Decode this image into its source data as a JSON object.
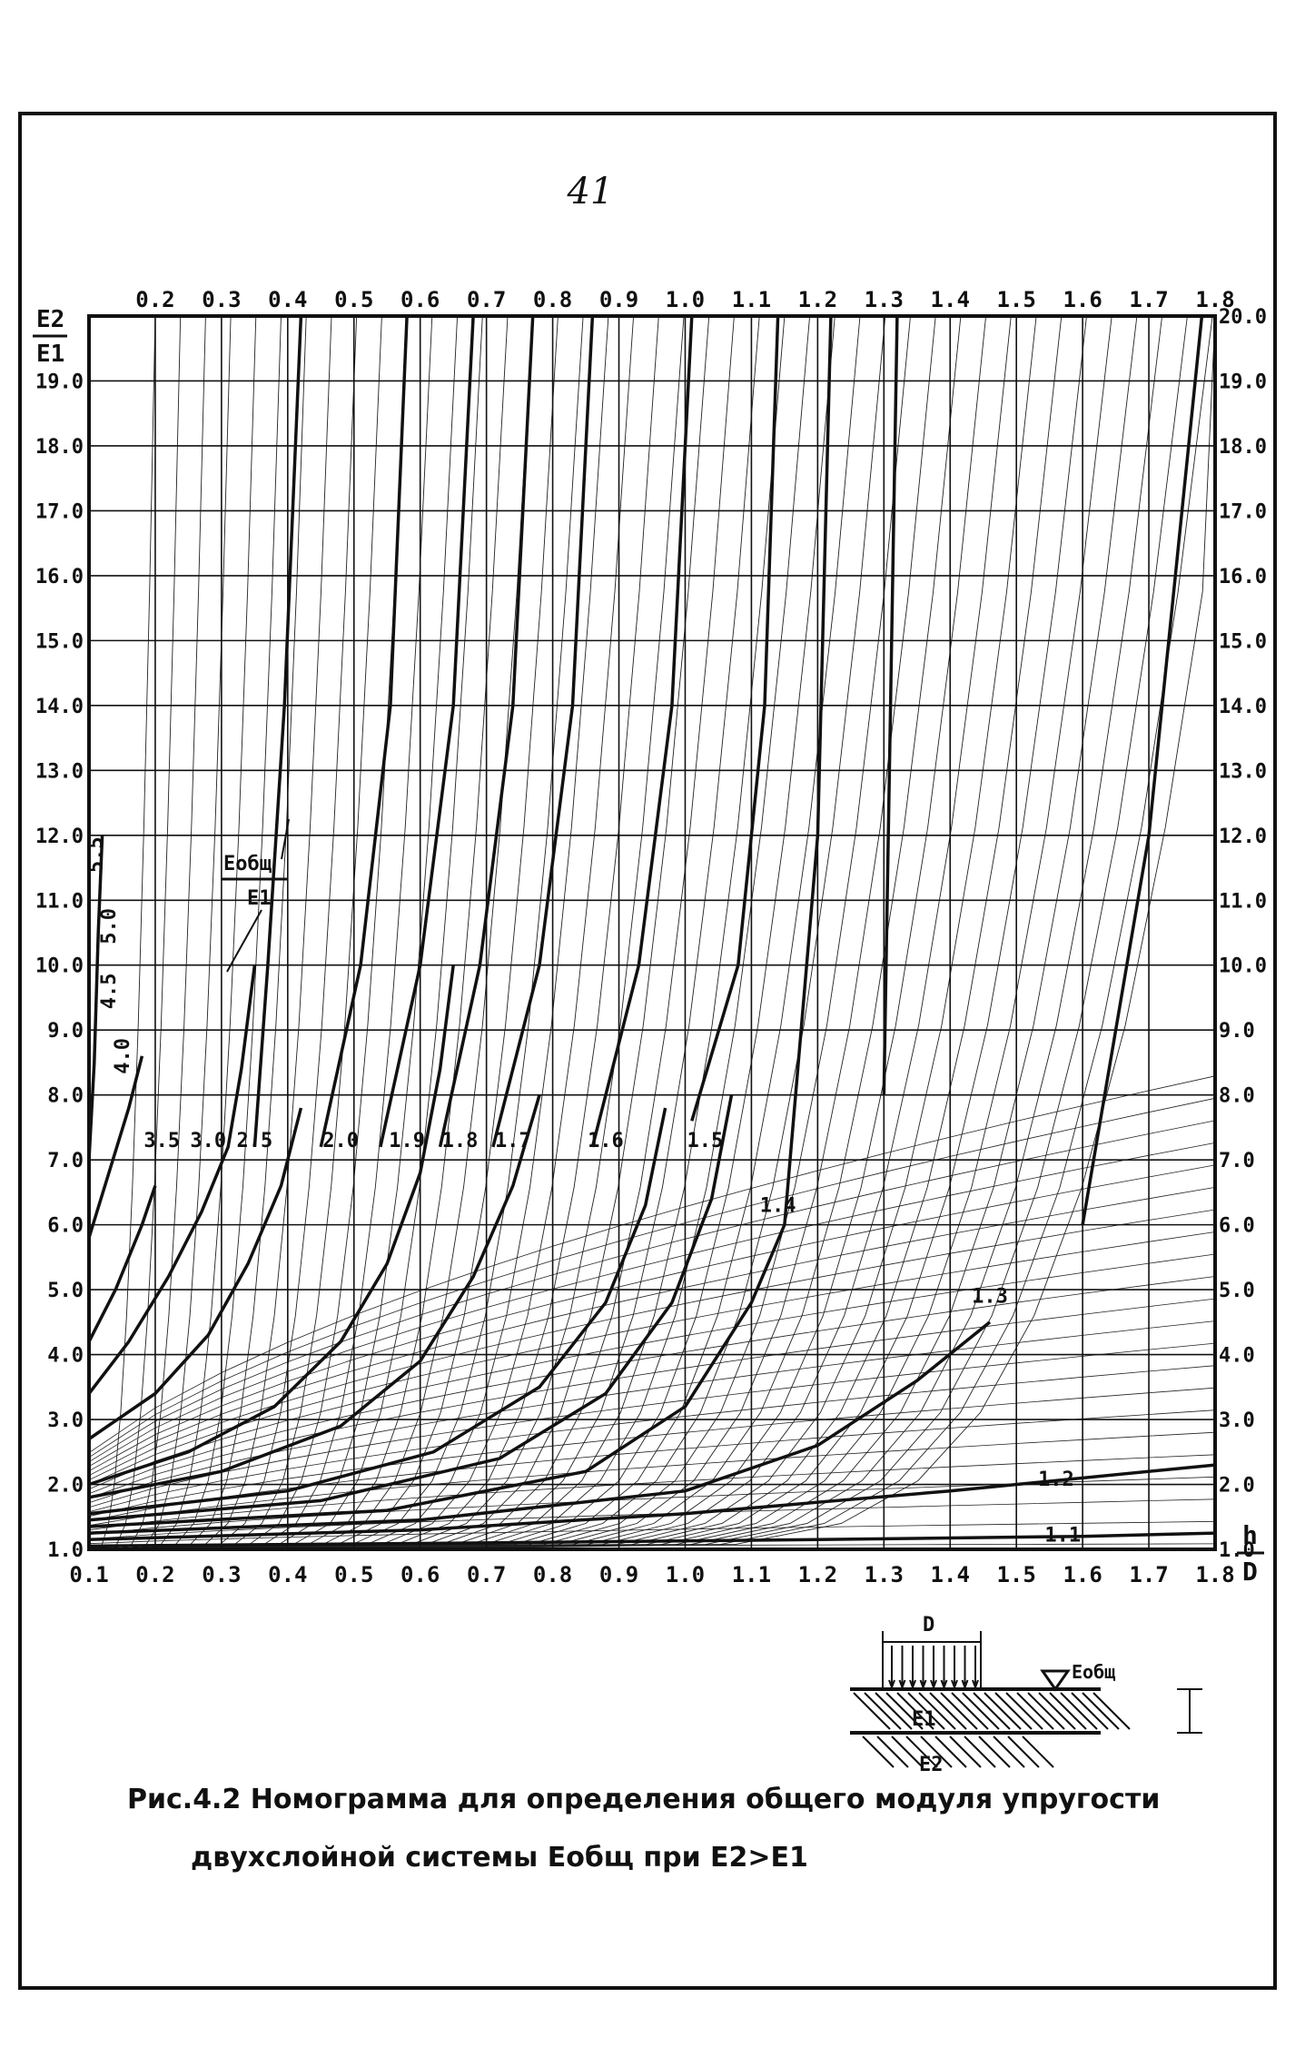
{
  "page_number": "41",
  "chart_data": {
    "type": "line",
    "title": "",
    "x_top_labels": [
      "0.2",
      "0.3",
      "0.4",
      "0.5",
      "0.6",
      "0.7",
      "0.8",
      "0.9",
      "1.0",
      "1.1",
      "1.2",
      "1.3",
      "1.4",
      "1.5",
      "1.6",
      "1.7",
      "1.8"
    ],
    "x_bottom_labels": [
      "0.1",
      "0.2",
      "0.3",
      "0.4",
      "0.5",
      "0.6",
      "0.7",
      "0.8",
      "0.9",
      "1.0",
      "1.1",
      "1.2",
      "1.3",
      "1.4",
      "1.5",
      "1.6",
      "1.7",
      "1.8"
    ],
    "y_left_labels": [
      "1.0",
      "2.0",
      "3.0",
      "4.0",
      "5.0",
      "6.0",
      "7.0",
      "8.0",
      "9.0",
      "10.0",
      "11.0",
      "12.0",
      "13.0",
      "14.0",
      "15.0",
      "16.0",
      "17.0",
      "18.0",
      "19.0"
    ],
    "y_right_labels": [
      "1.0",
      "2.0",
      "3.0",
      "4.0",
      "5.0",
      "6.0",
      "7.0",
      "8.0",
      "9.0",
      "10.0",
      "11.0",
      "12.0",
      "13.0",
      "14.0",
      "15.0",
      "16.0",
      "17.0",
      "18.0",
      "19.0",
      "20.0"
    ],
    "ylabel_num": "E2",
    "ylabel_den": "E1",
    "xlabel_num": "h",
    "xlabel_den": "D",
    "curve_label_num": "Eобщ",
    "curve_label_den": "E1",
    "xlim": [
      0.1,
      1.8
    ],
    "ylim": [
      1.0,
      20.0
    ],
    "grid": true,
    "curve_labels": [
      {
        "label": "5.5",
        "x": 0.12,
        "y": 11.7
      },
      {
        "label": "5.0",
        "x": 0.14,
        "y": 10.6
      },
      {
        "label": "4.5",
        "x": 0.14,
        "y": 9.6
      },
      {
        "label": "4.0",
        "x": 0.16,
        "y": 8.6
      },
      {
        "label": "3.5",
        "x": 0.21,
        "y": 7.2
      },
      {
        "label": "3.0",
        "x": 0.28,
        "y": 7.2
      },
      {
        "label": "2.5",
        "x": 0.35,
        "y": 7.2
      },
      {
        "label": "2.0",
        "x": 0.48,
        "y": 7.2
      },
      {
        "label": "1.9",
        "x": 0.58,
        "y": 7.2
      },
      {
        "label": "1.8",
        "x": 0.66,
        "y": 7.2
      },
      {
        "label": "1.7",
        "x": 0.74,
        "y": 7.2
      },
      {
        "label": "1.6",
        "x": 0.88,
        "y": 7.2
      },
      {
        "label": "1.5",
        "x": 1.03,
        "y": 7.2
      },
      {
        "label": "1.4",
        "x": 1.14,
        "y": 6.2
      },
      {
        "label": "1.3",
        "x": 1.46,
        "y": 4.8
      },
      {
        "label": "1.2",
        "x": 1.56,
        "y": 1.98
      },
      {
        "label": "1.1",
        "x": 1.57,
        "y": 1.12
      }
    ],
    "curves": [
      {
        "k": 5.5,
        "x": [
          0.1,
          0.108,
          0.114,
          0.12
        ],
        "y": [
          7.0,
          8.5,
          10.5,
          12.0
        ]
      },
      {
        "k": 4.5,
        "x": [
          0.1,
          0.13,
          0.16,
          0.18
        ],
        "y": [
          5.8,
          6.8,
          7.8,
          8.6
        ]
      },
      {
        "k": 3.5,
        "x": [
          0.1,
          0.14,
          0.18,
          0.2
        ],
        "y": [
          4.2,
          5.0,
          6.0,
          6.6
        ]
      },
      {
        "k": 3.0,
        "x": [
          0.1,
          0.16,
          0.22,
          0.27,
          0.31,
          0.33,
          0.35
        ],
        "y": [
          3.4,
          4.2,
          5.2,
          6.2,
          7.2,
          8.4,
          10.0
        ]
      },
      {
        "k": 2.5,
        "x": [
          0.1,
          0.2,
          0.28,
          0.34,
          0.39,
          0.42
        ],
        "y": [
          2.7,
          3.4,
          4.3,
          5.4,
          6.6,
          7.8
        ]
      },
      {
        "k": 2.0,
        "x": [
          0.1,
          0.25,
          0.38,
          0.48,
          0.55,
          0.6,
          0.63,
          0.65
        ],
        "y": [
          2.0,
          2.5,
          3.2,
          4.2,
          5.4,
          6.8,
          8.4,
          10.0
        ]
      },
      {
        "k": 1.8,
        "x": [
          0.1,
          0.3,
          0.48,
          0.6,
          0.68,
          0.74,
          0.78
        ],
        "y": [
          1.8,
          2.2,
          2.9,
          3.9,
          5.2,
          6.6,
          8.0
        ]
      },
      {
        "k": 1.6,
        "x": [
          0.1,
          0.4,
          0.62,
          0.78,
          0.88,
          0.94,
          0.97
        ],
        "y": [
          1.55,
          1.9,
          2.5,
          3.5,
          4.8,
          6.3,
          7.8
        ]
      },
      {
        "k": 1.5,
        "x": [
          0.1,
          0.45,
          0.72,
          0.88,
          0.98,
          1.04,
          1.07
        ],
        "y": [
          1.45,
          1.75,
          2.4,
          3.4,
          4.8,
          6.4,
          8.0
        ]
      },
      {
        "k": 1.4,
        "x": [
          0.1,
          0.55,
          0.85,
          1.0,
          1.1,
          1.15
        ],
        "y": [
          1.35,
          1.6,
          2.2,
          3.2,
          4.8,
          6.0
        ]
      },
      {
        "k": 1.3,
        "x": [
          0.1,
          0.6,
          1.0,
          1.2,
          1.35,
          1.46
        ],
        "y": [
          1.25,
          1.45,
          1.9,
          2.6,
          3.6,
          4.5
        ]
      },
      {
        "k": 1.2,
        "x": [
          0.1,
          0.6,
          1.0,
          1.4,
          1.8
        ],
        "y": [
          1.15,
          1.3,
          1.55,
          1.9,
          2.3
        ]
      },
      {
        "k": 1.1,
        "x": [
          0.1,
          0.7,
          1.2,
          1.6,
          1.8
        ],
        "y": [
          1.05,
          1.1,
          1.15,
          1.2,
          1.25
        ]
      }
    ],
    "steep_curves": [
      {
        "x": [
          0.35,
          0.37,
          0.395,
          0.42
        ],
        "y": [
          7.2,
          10.0,
          14.0,
          20.0
        ]
      },
      {
        "x": [
          0.45,
          0.51,
          0.555,
          0.58
        ],
        "y": [
          7.2,
          10.0,
          14.0,
          20.0
        ]
      },
      {
        "x": [
          0.54,
          0.6,
          0.65,
          0.68
        ],
        "y": [
          7.2,
          10.0,
          14.0,
          20.0
        ]
      },
      {
        "x": [
          0.63,
          0.69,
          0.74,
          0.77
        ],
        "y": [
          7.2,
          10.0,
          14.0,
          20.0
        ]
      },
      {
        "x": [
          0.71,
          0.78,
          0.83,
          0.86
        ],
        "y": [
          7.2,
          10.0,
          14.0,
          20.0
        ]
      },
      {
        "x": [
          0.86,
          0.93,
          0.98,
          1.01
        ],
        "y": [
          7.2,
          10.0,
          14.0,
          20.0
        ]
      },
      {
        "x": [
          1.01,
          1.08,
          1.12,
          1.14
        ],
        "y": [
          7.6,
          10.0,
          14.0,
          20.0
        ]
      },
      {
        "x": [
          1.15,
          1.2,
          1.22
        ],
        "y": [
          6.0,
          12.0,
          20.0
        ]
      },
      {
        "x": [
          1.3,
          1.32
        ],
        "y": [
          8.0,
          20.0
        ]
      },
      {
        "x": [
          1.6,
          1.7,
          1.78
        ],
        "y": [
          6.0,
          12.0,
          20.0
        ]
      }
    ],
    "inset": {
      "label_top": "D",
      "label_surface": "Eобщ",
      "label_layer1": "E1",
      "label_layer2": "E2"
    }
  },
  "caption": {
    "line1": "Рис.4.2 Номограмма для определения общего модуля упругости",
    "line2": "двухслойной системы Eобщ при E2>E1"
  }
}
